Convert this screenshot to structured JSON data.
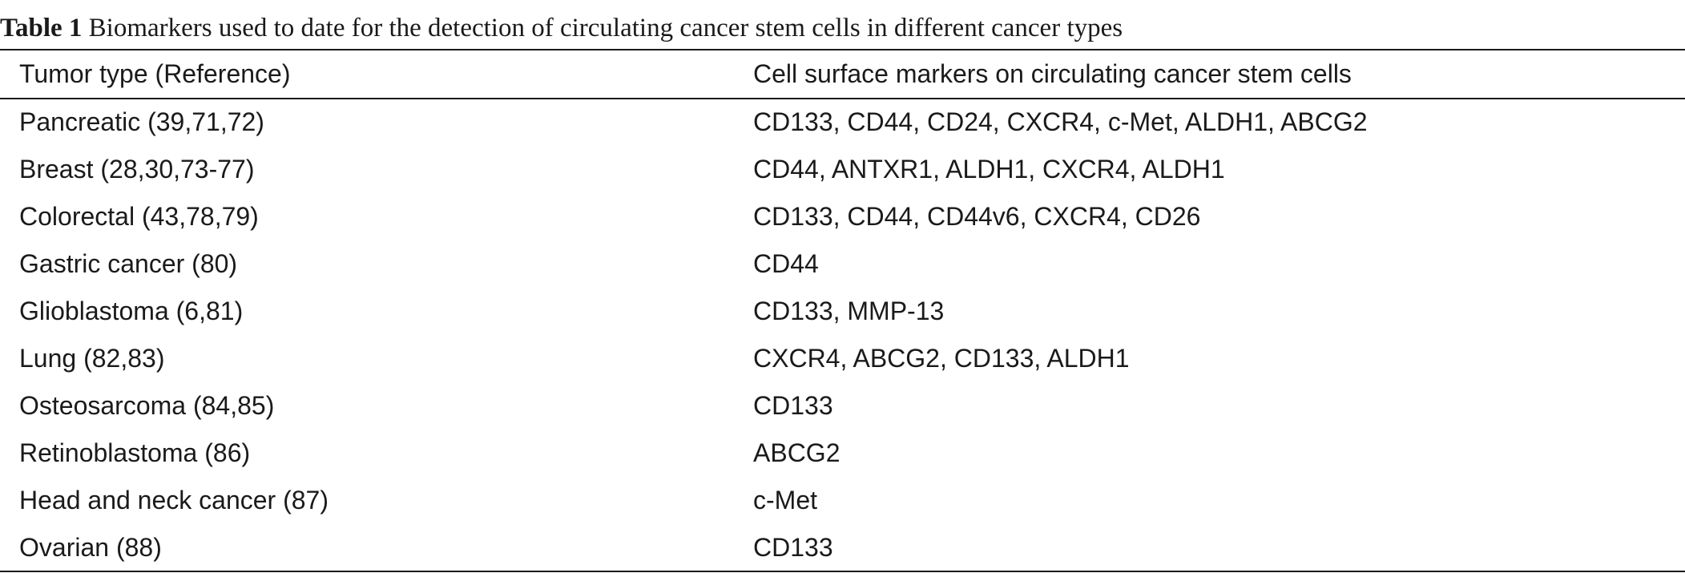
{
  "table": {
    "caption_label": "Table 1",
    "caption_text": "Biomarkers used to date for the detection of circulating cancer stem cells in different cancer types",
    "columns": [
      "Tumor type (Reference)",
      "Cell surface markers on circulating cancer stem cells"
    ],
    "rows": [
      [
        "Pancreatic (39,71,72)",
        "CD133, CD44, CD24, CXCR4, c-Met, ALDH1, ABCG2"
      ],
      [
        "Breast (28,30,73-77)",
        "CD44, ANTXR1, ALDH1, CXCR4, ALDH1"
      ],
      [
        "Colorectal (43,78,79)",
        "CD133, CD44, CD44v6, CXCR4, CD26"
      ],
      [
        "Gastric cancer (80)",
        "CD44"
      ],
      [
        "Glioblastoma (6,81)",
        "CD133, MMP-13"
      ],
      [
        "Lung (82,83)",
        "CXCR4, ABCG2, CD133, ALDH1"
      ],
      [
        "Osteosarcoma (84,85)",
        "CD133"
      ],
      [
        "Retinoblastoma (86)",
        "ABCG2"
      ],
      [
        "Head and neck cancer (87)",
        "c-Met"
      ],
      [
        "Ovarian (88)",
        "CD133"
      ]
    ]
  }
}
